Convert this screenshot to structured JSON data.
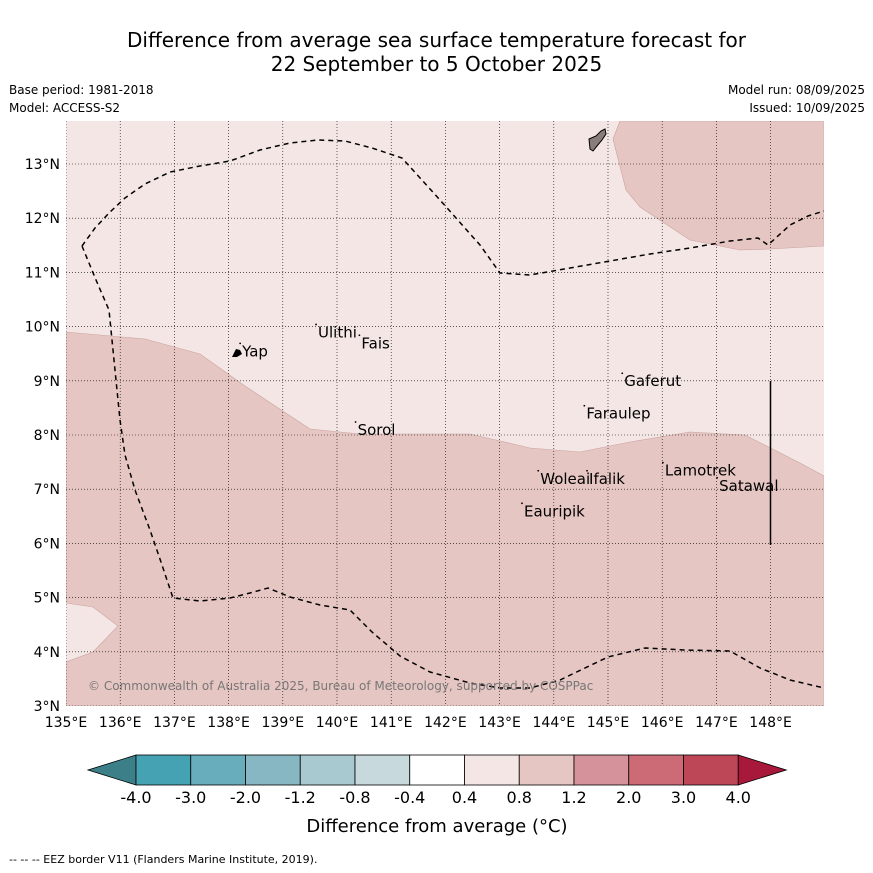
{
  "header": {
    "title_line1": "Difference from average sea surface temperature forecast for",
    "title_line2": "22 September to 5 October 2025",
    "base_period": "Base period: 1981-2018",
    "model": "Model: ACCESS-S2",
    "model_run": "Model run: 08/09/2025",
    "issued": "Issued: 10/09/2025"
  },
  "map": {
    "lon_range": [
      135,
      149
    ],
    "lat_range": [
      3,
      13.8
    ],
    "lon_ticks": [
      {
        "value": 135,
        "label": "135°E"
      },
      {
        "value": 136,
        "label": "136°E"
      },
      {
        "value": 137,
        "label": "137°E"
      },
      {
        "value": 138,
        "label": "138°E"
      },
      {
        "value": 139,
        "label": "139°E"
      },
      {
        "value": 140,
        "label": "140°E"
      },
      {
        "value": 141,
        "label": "141°E"
      },
      {
        "value": 142,
        "label": "142°E"
      },
      {
        "value": 143,
        "label": "143°E"
      },
      {
        "value": 144,
        "label": "144°E"
      },
      {
        "value": 145,
        "label": "145°E"
      },
      {
        "value": 146,
        "label": "146°E"
      },
      {
        "value": 147,
        "label": "147°E"
      },
      {
        "value": 148,
        "label": "148°E"
      }
    ],
    "lat_ticks": [
      {
        "value": 3,
        "label": "3°N"
      },
      {
        "value": 4,
        "label": "4°N"
      },
      {
        "value": 5,
        "label": "5°N"
      },
      {
        "value": 6,
        "label": "6°N"
      },
      {
        "value": 7,
        "label": "7°N"
      },
      {
        "value": 8,
        "label": "8°N"
      },
      {
        "value": 9,
        "label": "9°N"
      },
      {
        "value": 10,
        "label": "10°N"
      },
      {
        "value": 11,
        "label": "11°N"
      },
      {
        "value": 12,
        "label": "12°N"
      },
      {
        "value": 13,
        "label": "13°N"
      }
    ],
    "places": [
      {
        "name": "Yap",
        "lon": 138.25,
        "lat": 9.45
      },
      {
        "name": "Ulithi",
        "lon": 139.65,
        "lat": 9.8
      },
      {
        "name": "Fais",
        "lon": 140.45,
        "lat": 9.6
      },
      {
        "name": "Gaferut",
        "lon": 145.3,
        "lat": 8.9
      },
      {
        "name": "Faraulep",
        "lon": 144.6,
        "lat": 8.3
      },
      {
        "name": "Sorol",
        "lon": 140.38,
        "lat": 8.0
      },
      {
        "name": "Lamotrek",
        "lon": 146.05,
        "lat": 7.25
      },
      {
        "name": "Woleai",
        "lon": 143.75,
        "lat": 7.1
      },
      {
        "name": "Ifalik",
        "lon": 144.65,
        "lat": 7.1
      },
      {
        "name": "Satawal",
        "lon": 147.05,
        "lat": 6.97
      },
      {
        "name": "Eauripik",
        "lon": 143.45,
        "lat": 6.5
      }
    ],
    "fill_colors": {
      "anomaly_0_4_to_0_8": "#f3e6e5",
      "anomaly_0_8_to_1_2": "#e6c6c2"
    },
    "copyright": "© Commonwealth of Australia 2025, Bureau of Meteorology, supported by COSPPac"
  },
  "colorbar": {
    "title": "Difference from average (°C)",
    "labels": [
      "-4.0",
      "-3.0",
      "-2.0",
      "-1.2",
      "-0.8",
      "-0.4",
      "0.4",
      "0.8",
      "1.2",
      "2.0",
      "3.0",
      "4.0"
    ],
    "colors": [
      "#3d7f89",
      "#45a2b3",
      "#68adbc",
      "#87b7c3",
      "#a8c9cf",
      "#c7d9dc",
      "#ffffff",
      "#f3e6e5",
      "#e6c6c2",
      "#d6929a",
      "#cc6b76",
      "#be4757",
      "#a8183a"
    ]
  },
  "footer": "--  --  -- EEZ border V11 (Flanders Marine Institute, 2019)."
}
